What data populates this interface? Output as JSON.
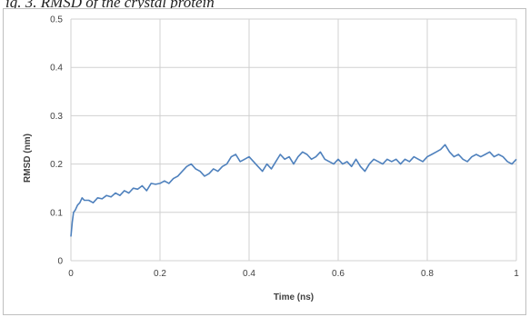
{
  "caption": "ig. 3. RMSD of the crystal protein",
  "chart_data": {
    "type": "line",
    "title": "",
    "xlabel": "Time (ns)",
    "ylabel": "RMSD (nm)",
    "xlim": [
      0,
      1
    ],
    "ylim": [
      0,
      0.5
    ],
    "x_ticks": [
      "0",
      "0.2",
      "0.4",
      "0.6",
      "0.8",
      "1"
    ],
    "y_ticks": [
      "0",
      "0.1",
      "0.2",
      "0.3",
      "0.4",
      "0.5"
    ],
    "grid": true,
    "legend": "none",
    "line_color": "#4f81bd",
    "series": [
      {
        "x": [
          0,
          0.003,
          0.006,
          0.01,
          0.015,
          0.02,
          0.025,
          0.03,
          0.04,
          0.05,
          0.06,
          0.07,
          0.08,
          0.09,
          0.1,
          0.11,
          0.12,
          0.13,
          0.14,
          0.15,
          0.16,
          0.17,
          0.18,
          0.19,
          0.2,
          0.21,
          0.22,
          0.23,
          0.24,
          0.25,
          0.26,
          0.27,
          0.28,
          0.29,
          0.3,
          0.31,
          0.32,
          0.33,
          0.34,
          0.35,
          0.36,
          0.37,
          0.38,
          0.39,
          0.4,
          0.41,
          0.42,
          0.43,
          0.44,
          0.45,
          0.46,
          0.47,
          0.48,
          0.49,
          0.5,
          0.51,
          0.52,
          0.53,
          0.54,
          0.55,
          0.56,
          0.57,
          0.58,
          0.59,
          0.6,
          0.61,
          0.62,
          0.63,
          0.64,
          0.65,
          0.66,
          0.67,
          0.68,
          0.69,
          0.7,
          0.71,
          0.72,
          0.73,
          0.74,
          0.75,
          0.76,
          0.77,
          0.78,
          0.79,
          0.8,
          0.81,
          0.82,
          0.83,
          0.84,
          0.85,
          0.86,
          0.87,
          0.88,
          0.89,
          0.9,
          0.91,
          0.92,
          0.93,
          0.94,
          0.95,
          0.96,
          0.97,
          0.98,
          0.99,
          1.0
        ],
        "y": [
          0.05,
          0.08,
          0.1,
          0.105,
          0.115,
          0.12,
          0.13,
          0.125,
          0.125,
          0.12,
          0.13,
          0.128,
          0.135,
          0.132,
          0.14,
          0.135,
          0.145,
          0.14,
          0.15,
          0.148,
          0.155,
          0.145,
          0.16,
          0.158,
          0.16,
          0.165,
          0.16,
          0.17,
          0.175,
          0.185,
          0.195,
          0.2,
          0.19,
          0.185,
          0.175,
          0.18,
          0.19,
          0.185,
          0.195,
          0.2,
          0.215,
          0.22,
          0.205,
          0.21,
          0.215,
          0.205,
          0.195,
          0.185,
          0.2,
          0.19,
          0.205,
          0.22,
          0.21,
          0.215,
          0.2,
          0.215,
          0.225,
          0.22,
          0.21,
          0.215,
          0.225,
          0.21,
          0.205,
          0.2,
          0.21,
          0.2,
          0.205,
          0.195,
          0.21,
          0.195,
          0.185,
          0.2,
          0.21,
          0.205,
          0.2,
          0.21,
          0.205,
          0.21,
          0.2,
          0.21,
          0.205,
          0.215,
          0.21,
          0.205,
          0.215,
          0.22,
          0.225,
          0.23,
          0.24,
          0.225,
          0.215,
          0.22,
          0.21,
          0.205,
          0.215,
          0.22,
          0.215,
          0.22,
          0.225,
          0.215,
          0.22,
          0.215,
          0.205,
          0.2,
          0.21
        ]
      }
    ]
  }
}
